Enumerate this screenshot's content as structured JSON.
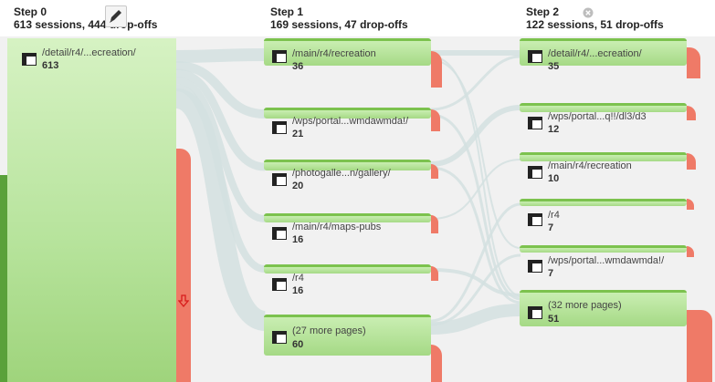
{
  "steps": [
    {
      "title": "Step 0",
      "summary": "613 sessions, 444 drop-offs"
    },
    {
      "title": "Step 1",
      "summary": "169 sessions, 47 drop-offs"
    },
    {
      "title": "Step 2",
      "summary": "122 sessions, 51 drop-offs"
    }
  ],
  "step0_nodes": [
    {
      "label": "/detail/r4/...ecreation/",
      "count": "613"
    }
  ],
  "step1_nodes": [
    {
      "label": "/main/r4/recreation",
      "count": "36"
    },
    {
      "label": "/wps/portal...wmdawmda!/",
      "count": "21"
    },
    {
      "label": "/photogalle...n/gallery/",
      "count": "20"
    },
    {
      "label": "/main/r4/maps-pubs",
      "count": "16"
    },
    {
      "label": "/r4",
      "count": "16"
    },
    {
      "label": "(27 more pages)",
      "count": "60"
    }
  ],
  "step2_nodes": [
    {
      "label": "/detail/r4/...ecreation/",
      "count": "35"
    },
    {
      "label": "/wps/portal...q!!/dl3/d3",
      "count": "12"
    },
    {
      "label": "/main/r4/recreation",
      "count": "10"
    },
    {
      "label": "/r4",
      "count": "7"
    },
    {
      "label": "/wps/portal...wmdawmda!/",
      "count": "7"
    },
    {
      "label": "(32 more pages)",
      "count": "51"
    }
  ],
  "icons": {
    "page": "page-icon",
    "edit": "pencil-icon",
    "close": "close-icon",
    "dropoff": "down-arrow-icon"
  },
  "colors": {
    "node_green": "#a5d985",
    "node_border": "#7cc24e",
    "dropoff_red": "#ef7a67",
    "flow": "#d6e3e3",
    "panel_bg": "#f1f1f1"
  }
}
